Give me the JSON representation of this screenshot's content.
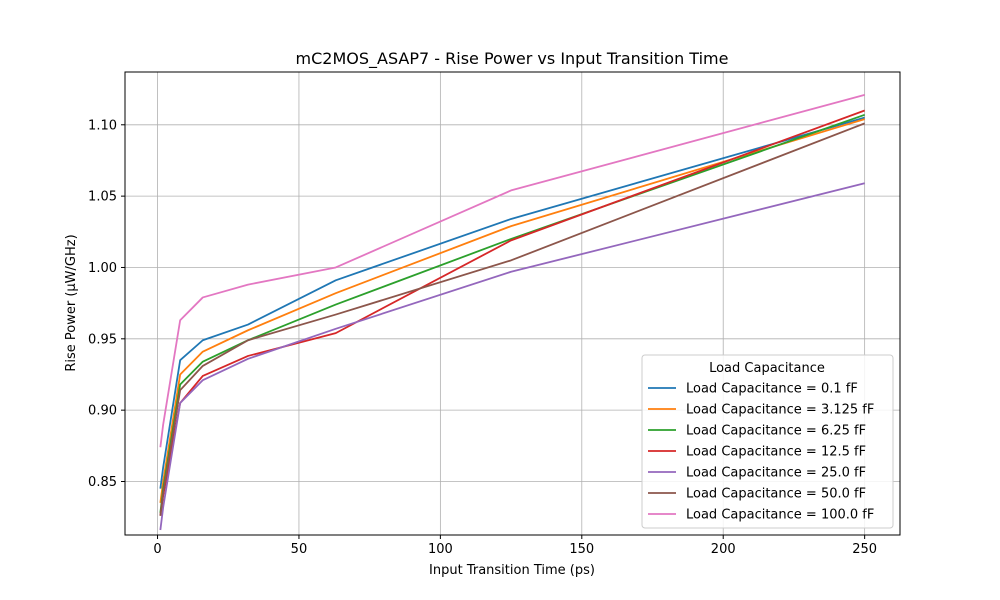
{
  "chart_data": {
    "type": "line",
    "title": "mC2MOS_ASAP7 - Rise Power vs Input Transition Time",
    "xlabel": "Input Transition Time (ps)",
    "ylabel": "Rise Power (µW/GHz)",
    "xlim": [
      -11.5,
      262.5
    ],
    "ylim": [
      0.8125,
      1.137
    ],
    "xticks": [
      0,
      50,
      100,
      150,
      200,
      250
    ],
    "xtick_labels": [
      "0",
      "50",
      "100",
      "150",
      "200",
      "250"
    ],
    "yticks": [
      0.85,
      0.9,
      0.95,
      1.0,
      1.05,
      1.1
    ],
    "ytick_labels": [
      "0.85",
      "0.90",
      "0.95",
      "1.00",
      "1.05",
      "1.10"
    ],
    "grid": true,
    "legend": {
      "title": "Load Capacitance",
      "placement": "lower-right"
    },
    "x": [
      1,
      2,
      8,
      16,
      32,
      63,
      125,
      250
    ],
    "series": [
      {
        "name": "Load Capacitance = 0.1 fF",
        "color": "#1f77b4",
        "values": [
          0.845,
          0.86,
          0.935,
          0.949,
          0.96,
          0.991,
          1.034,
          1.105
        ]
      },
      {
        "name": "Load Capacitance = 3.125 fF",
        "color": "#ff7f0e",
        "values": [
          0.835,
          0.85,
          0.925,
          0.941,
          0.956,
          0.982,
          1.029,
          1.104
        ]
      },
      {
        "name": "Load Capacitance = 6.25 fF",
        "color": "#2ca02c",
        "values": [
          0.828,
          0.845,
          0.918,
          0.934,
          0.949,
          0.974,
          1.02,
          1.107
        ]
      },
      {
        "name": "Load Capacitance = 12.5 fF",
        "color": "#d62728",
        "values": [
          0.826,
          0.84,
          0.905,
          0.924,
          0.938,
          0.954,
          1.019,
          1.11
        ]
      },
      {
        "name": "Load Capacitance = 25.0 fF",
        "color": "#9467bd",
        "values": [
          0.816,
          0.832,
          0.905,
          0.921,
          0.936,
          0.957,
          0.997,
          1.059
        ]
      },
      {
        "name": "Load Capacitance = 50.0 fF",
        "color": "#8c564b",
        "values": [
          0.826,
          0.842,
          0.914,
          0.931,
          0.949,
          0.967,
          1.005,
          1.101
        ]
      },
      {
        "name": "Load Capacitance = 100.0 fF",
        "color": "#e377c2",
        "values": [
          0.874,
          0.89,
          0.963,
          0.979,
          0.988,
          1.0,
          1.054,
          1.121
        ]
      }
    ]
  }
}
